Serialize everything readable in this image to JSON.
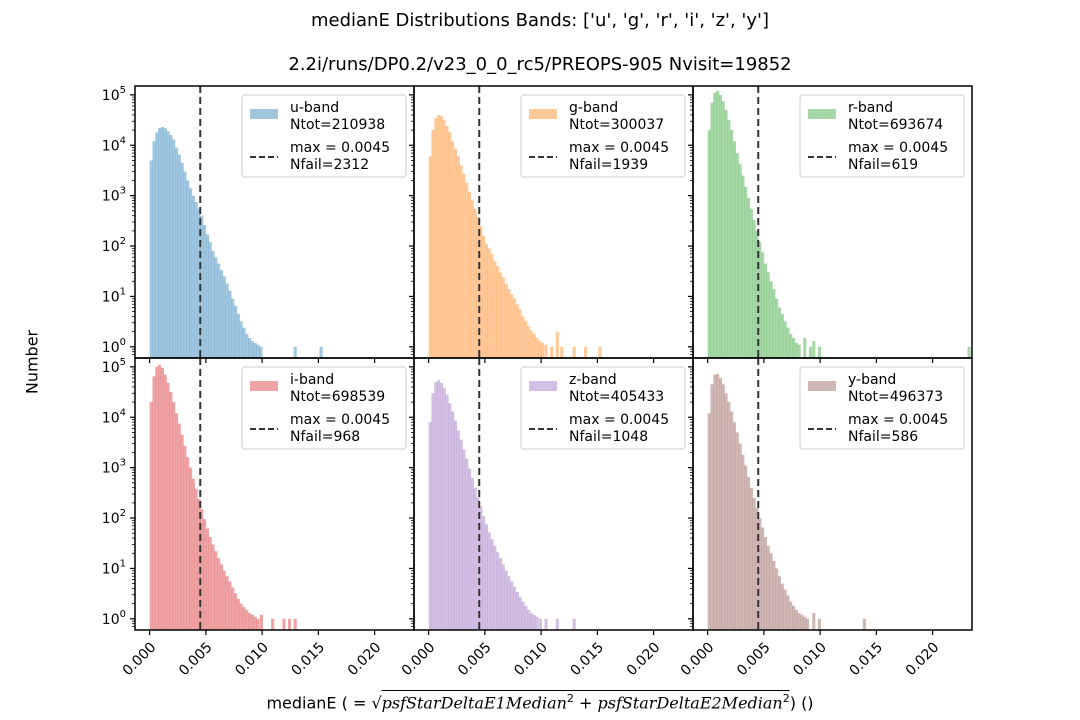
{
  "titles": {
    "line1": "medianE Distributions  Bands: ['u', 'g', 'r', 'i', 'z', 'y']",
    "line2": "2.2i/runs/DP0.2/v23_0_0_rc5/PREOPS-905   Nvisit=19852"
  },
  "axes": {
    "ylabel": "Number",
    "xlabel_prefix": "medianE ( = ",
    "xlabel_term1": "psfStarDeltaE1Median",
    "xlabel_term2": "psfStarDeltaE2Median",
    "xlabel_suffix": ") ()"
  },
  "chart_data": {
    "type": "histogram-grid",
    "grid": [
      2,
      3
    ],
    "scale_y": "log",
    "xlim": [
      -0.0013,
      0.0235
    ],
    "ylim": [
      0.6,
      150000
    ],
    "x_ticks": [
      0.0,
      0.005,
      0.01,
      0.015,
      0.02
    ],
    "x_tick_labels": [
      "0.000",
      "0.005",
      "0.010",
      "0.015",
      "0.020"
    ],
    "y_ticks": [
      1,
      10,
      100,
      1000,
      10000,
      100000
    ],
    "threshold": 0.0045,
    "legend_position": "top-right",
    "max_label": "max = 0.0045",
    "bin_width": 0.00025,
    "panels": [
      {
        "band": "u-band",
        "ntot": "Ntot=210938",
        "nfail": "Nfail=2312",
        "color": "#1f77b4",
        "x": [
          0.0,
          0.00025,
          0.0005,
          0.00075,
          0.001,
          0.00125,
          0.0015,
          0.00175,
          0.002,
          0.00225,
          0.0025,
          0.00275,
          0.003,
          0.00325,
          0.0035,
          0.00375,
          0.004,
          0.00425,
          0.0045,
          0.00475,
          0.005,
          0.00525,
          0.0055,
          0.00575,
          0.006,
          0.00625,
          0.0065,
          0.00675,
          0.007,
          0.00725,
          0.0075,
          0.00775,
          0.008,
          0.00825,
          0.0085,
          0.00875,
          0.009,
          0.00925,
          0.0095,
          0.00975,
          0.0128,
          0.0151
        ],
        "y": [
          5000,
          12000,
          18000,
          22000,
          23000,
          22000,
          19000,
          16000,
          13000,
          9000,
          6500,
          4500,
          3000,
          2000,
          1400,
          1000,
          750,
          550,
          400,
          260,
          170,
          120,
          80,
          60,
          45,
          33,
          25,
          18,
          13,
          9,
          6.5,
          4.5,
          3.2,
          2.4,
          1.8,
          1.5,
          1.3,
          1.2,
          1.1,
          1,
          1,
          1
        ]
      },
      {
        "band": "g-band",
        "ntot": "Ntot=300037",
        "nfail": "Nfail=1939",
        "color": "#ff7f0e",
        "x": [
          0.0,
          0.00025,
          0.0005,
          0.00075,
          0.001,
          0.00125,
          0.0015,
          0.00175,
          0.002,
          0.00225,
          0.0025,
          0.00275,
          0.003,
          0.00325,
          0.0035,
          0.00375,
          0.004,
          0.00425,
          0.0045,
          0.00475,
          0.005,
          0.00525,
          0.0055,
          0.00575,
          0.006,
          0.00625,
          0.0065,
          0.00675,
          0.007,
          0.00725,
          0.0075,
          0.00775,
          0.008,
          0.00825,
          0.0085,
          0.00875,
          0.009,
          0.00925,
          0.0095,
          0.00975,
          0.01,
          0.0103,
          0.0108,
          0.0113,
          0.0117,
          0.0128,
          0.0138,
          0.0151
        ],
        "y": [
          6000,
          20000,
          35000,
          40000,
          38000,
          32000,
          24000,
          18000,
          12000,
          8500,
          6000,
          4000,
          2700,
          1800,
          1200,
          800,
          550,
          380,
          250,
          160,
          110,
          90,
          70,
          50,
          40,
          30,
          24,
          18,
          14,
          11,
          9,
          7,
          5.5,
          4,
          3.3,
          2.6,
          2.1,
          1.8,
          1.5,
          1.3,
          1.2,
          1.1,
          1,
          2,
          1,
          1,
          1,
          1
        ]
      },
      {
        "band": "r-band",
        "ntot": "Ntot=693674",
        "nfail": "Nfail=619",
        "color": "#2ca02c",
        "x": [
          0.0,
          0.00025,
          0.0005,
          0.00075,
          0.001,
          0.00125,
          0.0015,
          0.00175,
          0.002,
          0.00225,
          0.0025,
          0.00275,
          0.003,
          0.00325,
          0.0035,
          0.00375,
          0.004,
          0.00425,
          0.0045,
          0.00475,
          0.005,
          0.00525,
          0.0055,
          0.00575,
          0.006,
          0.00625,
          0.0065,
          0.00675,
          0.007,
          0.00725,
          0.0075,
          0.00775,
          0.008,
          0.0085,
          0.009,
          0.0093,
          0.0098,
          0.0231
        ],
        "y": [
          20000,
          70000,
          110000,
          120000,
          100000,
          75000,
          50000,
          32000,
          20000,
          12000,
          7000,
          4200,
          2500,
          1500,
          900,
          550,
          330,
          200,
          120,
          75,
          45,
          30,
          20,
          14,
          9,
          6,
          4.5,
          3.2,
          2.4,
          1.8,
          1.5,
          1.2,
          1.1,
          1.5,
          1,
          1.3,
          1,
          1
        ]
      },
      {
        "band": "i-band",
        "ntot": "Ntot=698539",
        "nfail": "Nfail=968",
        "color": "#d62728",
        "x": [
          0.0,
          0.00025,
          0.0005,
          0.00075,
          0.001,
          0.00125,
          0.0015,
          0.00175,
          0.002,
          0.00225,
          0.0025,
          0.00275,
          0.003,
          0.00325,
          0.0035,
          0.00375,
          0.004,
          0.00425,
          0.0045,
          0.00475,
          0.005,
          0.00525,
          0.0055,
          0.00575,
          0.006,
          0.00625,
          0.0065,
          0.00675,
          0.007,
          0.00725,
          0.0075,
          0.00775,
          0.008,
          0.00825,
          0.0085,
          0.00875,
          0.009,
          0.00925,
          0.0095,
          0.0098,
          0.0108,
          0.0118,
          0.0123,
          0.0128
        ],
        "y": [
          20000,
          65000,
          100000,
          110000,
          95000,
          70000,
          48000,
          32000,
          20000,
          12000,
          7500,
          4500,
          2700,
          1600,
          1000,
          600,
          380,
          240,
          150,
          95,
          62,
          42,
          30,
          22,
          16,
          12,
          9,
          7,
          5.5,
          4.2,
          3.2,
          2.5,
          2,
          1.7,
          1.5,
          1.3,
          1.2,
          1.1,
          1,
          1.2,
          1,
          1,
          1,
          1
        ]
      },
      {
        "band": "z-band",
        "ntot": "Ntot=405433",
        "nfail": "Nfail=1048",
        "color": "#9467bd",
        "x": [
          0.0,
          0.00025,
          0.0005,
          0.00075,
          0.001,
          0.00125,
          0.0015,
          0.00175,
          0.002,
          0.00225,
          0.0025,
          0.00275,
          0.003,
          0.00325,
          0.0035,
          0.00375,
          0.004,
          0.00425,
          0.0045,
          0.00475,
          0.005,
          0.00525,
          0.0055,
          0.00575,
          0.006,
          0.00625,
          0.0065,
          0.00675,
          0.007,
          0.00725,
          0.0075,
          0.00775,
          0.008,
          0.00825,
          0.0085,
          0.00875,
          0.009,
          0.00925,
          0.0095,
          0.0098,
          0.0103,
          0.0113,
          0.0128
        ],
        "y": [
          8000,
          30000,
          50000,
          55000,
          48000,
          38000,
          28000,
          19000,
          13000,
          8500,
          5500,
          3600,
          2300,
          1500,
          950,
          620,
          400,
          260,
          170,
          110,
          75,
          52,
          38,
          28,
          21,
          16,
          12,
          9,
          7,
          5.5,
          4.3,
          3.4,
          2.7,
          2.2,
          1.8,
          1.5,
          1.3,
          1.2,
          1.1,
          1,
          1,
          1,
          1
        ]
      },
      {
        "band": "y-band",
        "ntot": "Ntot=496373",
        "nfail": "Nfail=586",
        "color": "#8c564b",
        "x": [
          0.0,
          0.00025,
          0.0005,
          0.00075,
          0.001,
          0.00125,
          0.0015,
          0.00175,
          0.002,
          0.00225,
          0.0025,
          0.00275,
          0.003,
          0.00325,
          0.0035,
          0.00375,
          0.004,
          0.00425,
          0.0045,
          0.00475,
          0.005,
          0.00525,
          0.0055,
          0.00575,
          0.006,
          0.00625,
          0.0065,
          0.00675,
          0.007,
          0.00725,
          0.0075,
          0.00775,
          0.008,
          0.00825,
          0.0085,
          0.00875,
          0.0093,
          0.0098,
          0.0138
        ],
        "y": [
          12000,
          45000,
          70000,
          72000,
          60000,
          45000,
          30000,
          20000,
          13000,
          8000,
          5000,
          3000,
          1800,
          1100,
          650,
          400,
          250,
          160,
          100,
          65,
          42,
          28,
          20,
          14,
          10,
          7,
          5,
          3.8,
          2.9,
          2.2,
          1.8,
          1.5,
          1.3,
          1.2,
          1.1,
          1,
          1.3,
          1,
          1
        ]
      }
    ]
  }
}
